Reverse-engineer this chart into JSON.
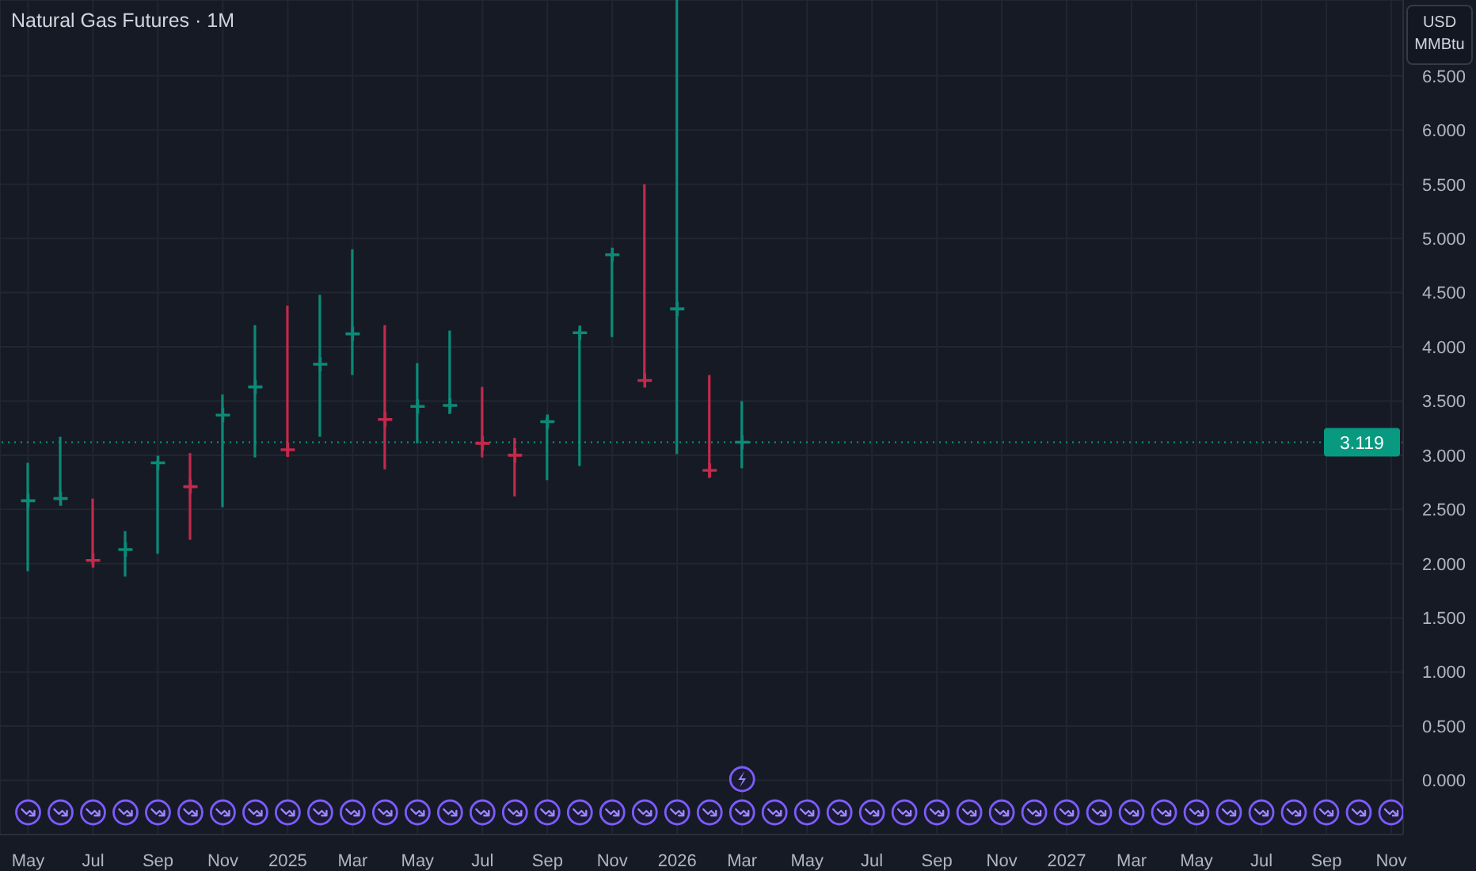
{
  "chart_data": {
    "type": "bar",
    "title": "Natural Gas Futures · 1M",
    "ylabel": "USD MMBtu",
    "x": [
      "2024-05",
      "2024-06",
      "2024-07",
      "2024-08",
      "2024-09",
      "2024-10",
      "2024-11",
      "2024-12",
      "2025-01",
      "2025-02",
      "2025-03",
      "2025-04",
      "2025-05",
      "2025-06",
      "2025-07",
      "2025-08",
      "2025-09",
      "2025-10",
      "2025-11",
      "2025-12",
      "2026-01",
      "2026-02",
      "2026-03"
    ],
    "series": [
      {
        "base": [
          1.93,
          2.58,
          2.0,
          1.88,
          2.09,
          2.22,
          2.52,
          2.98,
          2.99,
          3.17,
          3.74,
          2.87,
          3.11,
          3.38,
          2.98,
          2.62,
          2.77,
          2.9,
          4.09,
          3.69,
          3.01,
          2.79,
          2.88
        ],
        "values": [
          1.0,
          0.59,
          0.6,
          0.42,
          0.86,
          0.8,
          1.04,
          1.22,
          1.39,
          1.31,
          1.16,
          1.33,
          0.74,
          0.77,
          0.65,
          0.54,
          0.58,
          1.26,
          0.78,
          1.81,
          4.19,
          0.95,
          0.62
        ],
        "colors": [
          "#0b8a77",
          "#0b8a77",
          "#c22a4b",
          "#0b8a77",
          "#0b8a77",
          "#c22a4b",
          "#0b8a77",
          "#0b8a77",
          "#c22a4b",
          "#0b8a77",
          "#0b8a77",
          "#c22a4b",
          "#0b8a77",
          "#0b8a77",
          "#c22a4b",
          "#c22a4b",
          "#0b8a77",
          "#0b8a77",
          "#0b8a77",
          "#c22a4b",
          "#0b8a77",
          "#c22a4b",
          "#0b8a77"
        ]
      },
      {
        "type": "scatter",
        "marker": "cross",
        "values": [
          2.58,
          2.6,
          2.03,
          2.13,
          2.93,
          2.71,
          3.37,
          3.63,
          3.05,
          3.84,
          4.12,
          3.33,
          3.45,
          3.46,
          3.11,
          3.0,
          3.31,
          4.13,
          4.85,
          3.69,
          4.35,
          2.86,
          3.12
        ],
        "colors": [
          "#0b8a77",
          "#0b8a77",
          "#c22a4b",
          "#0b8a77",
          "#0b8a77",
          "#c22a4b",
          "#0b8a77",
          "#0b8a77",
          "#c22a4b",
          "#0b8a77",
          "#0b8a77",
          "#c22a4b",
          "#0b8a77",
          "#0b8a77",
          "#c22a4b",
          "#c22a4b",
          "#0b8a77",
          "#0b8a77",
          "#0b8a77",
          "#c22a4b",
          "#0b8a77",
          "#c22a4b",
          "#0b8a77"
        ]
      }
    ],
    "xlim": [
      "2024-04-05",
      "2027-11-12"
    ],
    "xticks": [
      {
        "value": "2024-05",
        "label": "May"
      },
      {
        "value": "2024-07",
        "label": "Jul"
      },
      {
        "value": "2024-09",
        "label": "Sep"
      },
      {
        "value": "2024-11",
        "label": "Nov"
      },
      {
        "value": "2025-01",
        "label": "2025"
      },
      {
        "value": "2025-03",
        "label": "Mar"
      },
      {
        "value": "2025-05",
        "label": "May"
      },
      {
        "value": "2025-07",
        "label": "Jul"
      },
      {
        "value": "2025-09",
        "label": "Sep"
      },
      {
        "value": "2025-11",
        "label": "Nov"
      },
      {
        "value": "2026-01",
        "label": "2026"
      },
      {
        "value": "2026-03",
        "label": "Mar"
      },
      {
        "value": "2026-05",
        "label": "May"
      },
      {
        "value": "2026-07",
        "label": "Jul"
      },
      {
        "value": "2026-09",
        "label": "Sep"
      },
      {
        "value": "2026-11",
        "label": "Nov"
      },
      {
        "value": "2027-01",
        "label": "2027"
      },
      {
        "value": "2027-03",
        "label": "Mar"
      },
      {
        "value": "2027-05",
        "label": "May"
      },
      {
        "value": "2027-07",
        "label": "Jul"
      },
      {
        "value": "2027-09",
        "label": "Sep"
      },
      {
        "value": "2027-11",
        "label": "Nov"
      }
    ],
    "ylim": [
      -0.5,
      7.2
    ],
    "yticks": [
      {
        "value": 0,
        "label": "0.000"
      },
      {
        "value": 0.5,
        "label": "0.500"
      },
      {
        "value": 1,
        "label": "1.000"
      },
      {
        "value": 1.5,
        "label": "1.500"
      },
      {
        "value": 2,
        "label": "2.000"
      },
      {
        "value": 2.5,
        "label": "2.500"
      },
      {
        "value": 3,
        "label": "3.000"
      },
      {
        "value": 3.5,
        "label": "3.500"
      },
      {
        "value": 4,
        "label": "4.000"
      },
      {
        "value": 4.5,
        "label": "4.500"
      },
      {
        "value": 5,
        "label": "5.000"
      },
      {
        "value": 5.5,
        "label": "5.500"
      },
      {
        "value": 6,
        "label": "6.000"
      },
      {
        "value": 6.5,
        "label": "6.500"
      }
    ],
    "grid": true,
    "ref_lines": [
      {
        "axis": "y",
        "value": 3.119,
        "label": "3.119",
        "color": "#089981",
        "line_style": "dotted"
      }
    ]
  }
}
